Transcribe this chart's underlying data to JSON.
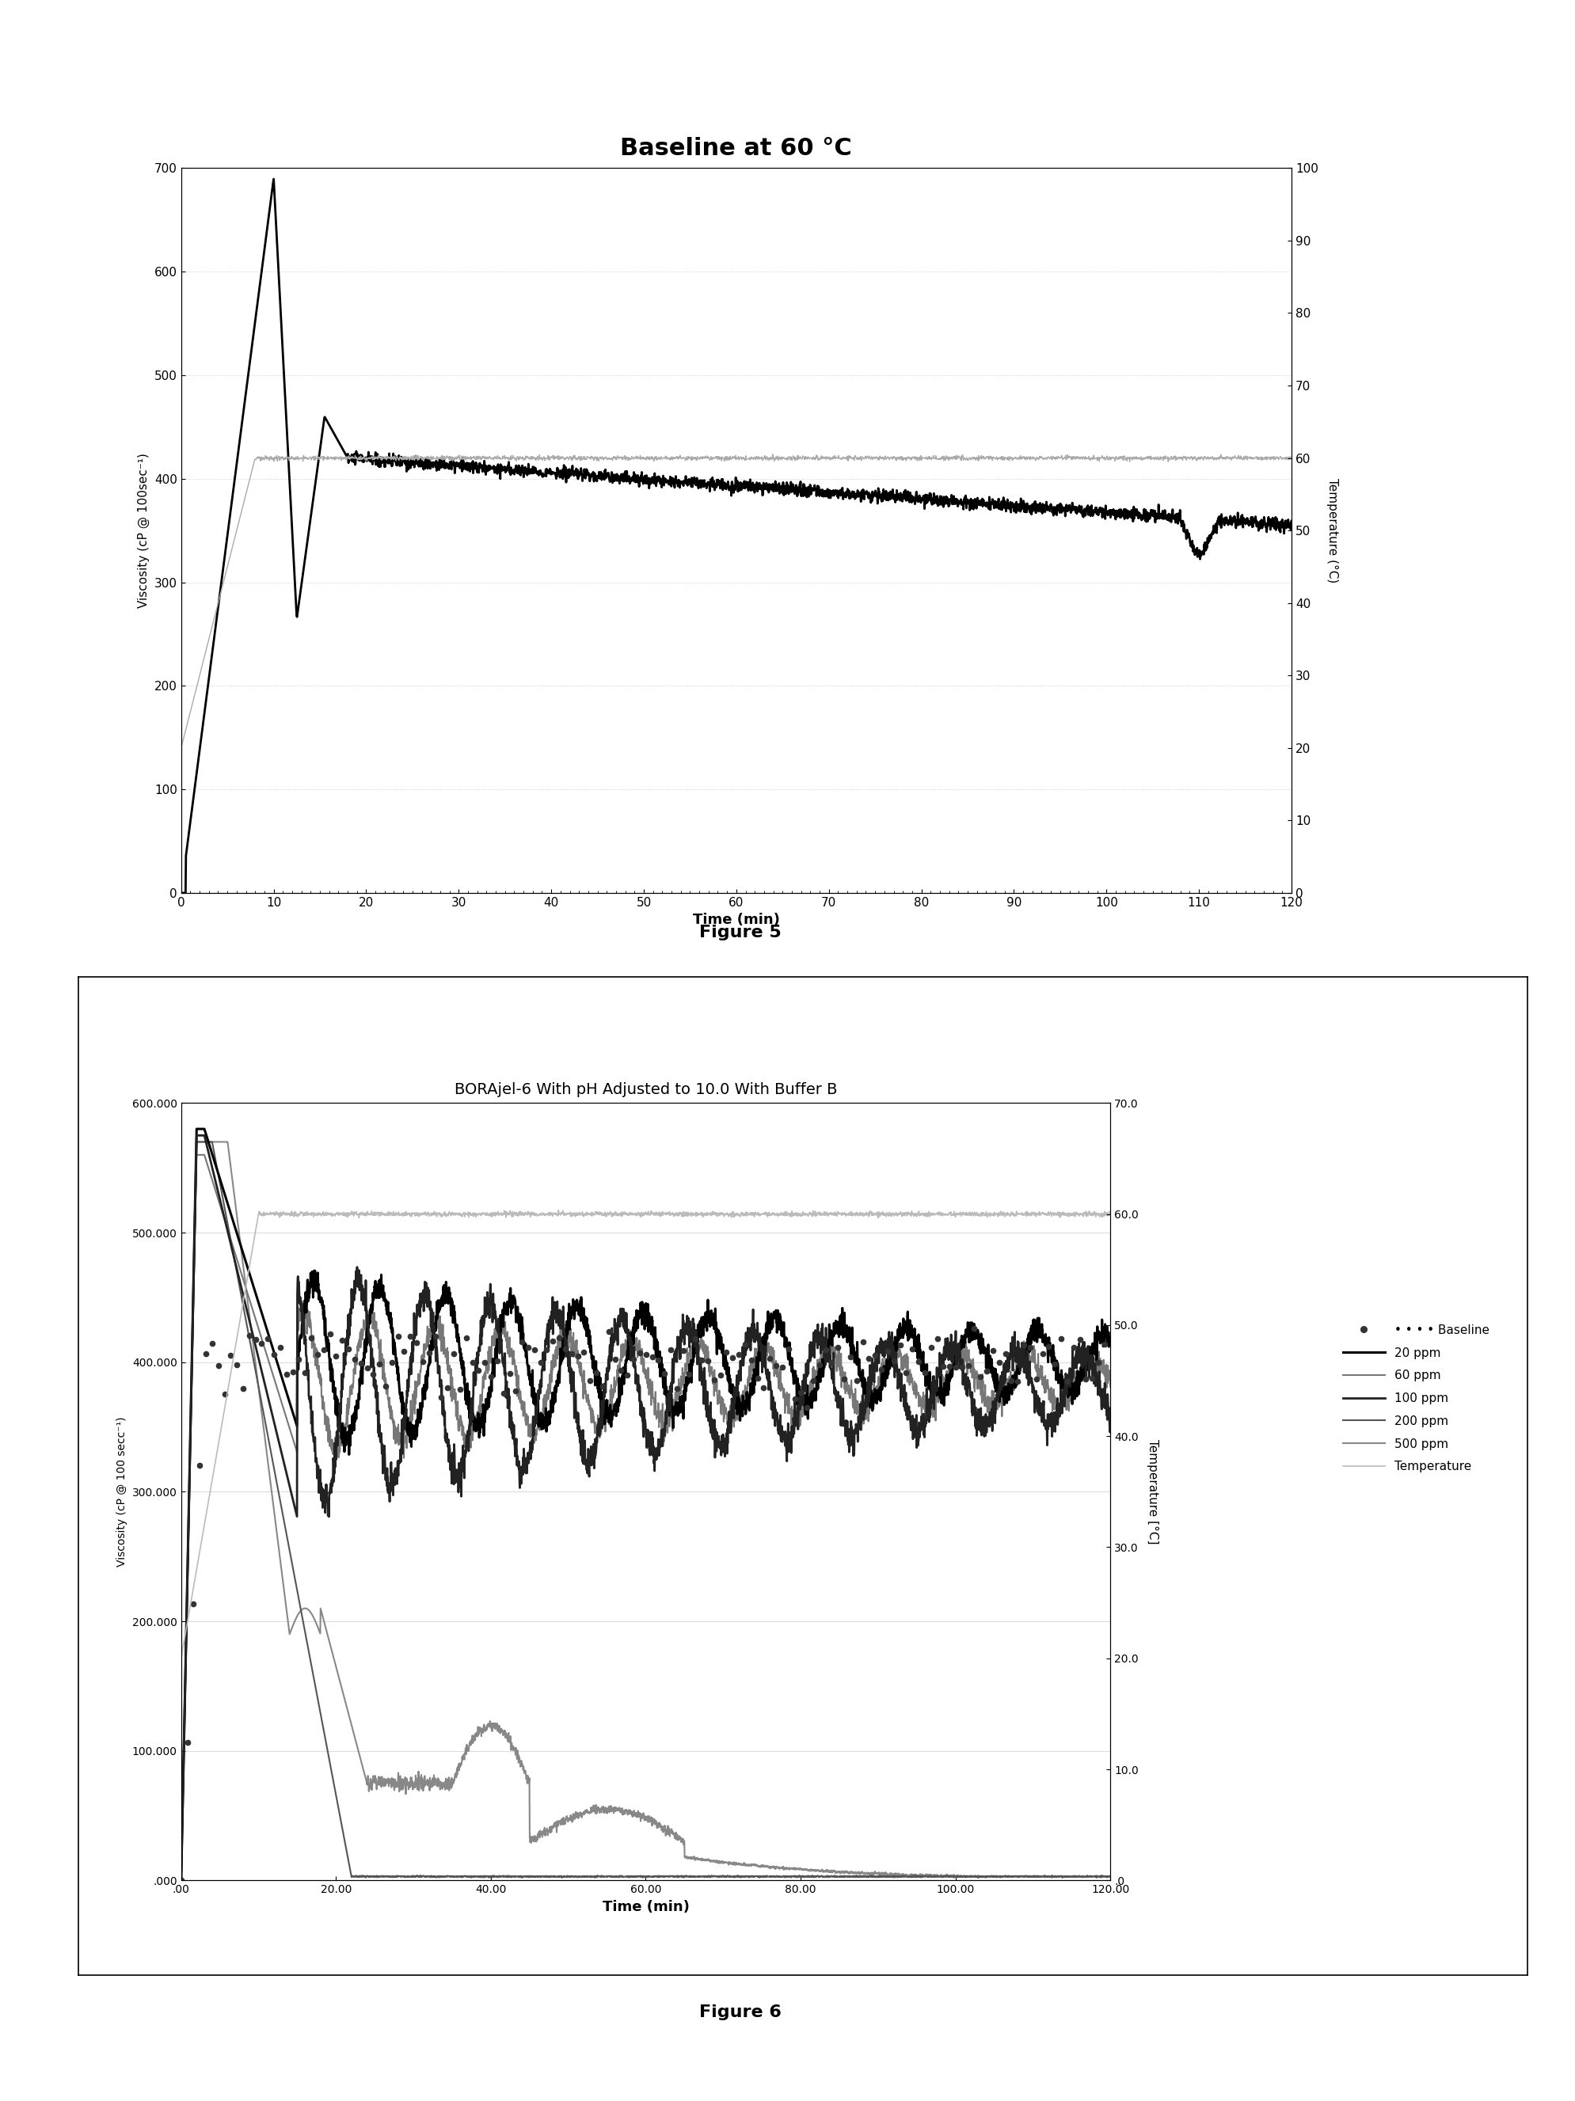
{
  "fig1_title": "Baseline at 60 °C",
  "fig1_xlabel": "Time (min)",
  "fig1_ylabel": "Viscosity (cP @ 100sec⁻¹)",
  "fig1_ylabel2": "Temperature (°C)",
  "fig1_xlim": [
    0,
    120
  ],
  "fig1_ylim": [
    0,
    700
  ],
  "fig1_ylim2": [
    0,
    100
  ],
  "fig1_xticks": [
    0,
    10,
    20,
    30,
    40,
    50,
    60,
    70,
    80,
    90,
    100,
    110,
    120
  ],
  "fig1_yticks": [
    0,
    100,
    200,
    300,
    400,
    500,
    600,
    700
  ],
  "fig1_yticks2": [
    0,
    10,
    20,
    30,
    40,
    50,
    60,
    70,
    80,
    90,
    100
  ],
  "fig2_title": "BORAjel-6 With pH Adjusted to 10.0 With Buffer B",
  "fig2_xlabel": "Time (min)",
  "fig2_ylabel": "Viscosity (cP @ 100 secc⁻¹)",
  "fig2_ylabel2": "Temperature [°C]",
  "fig2_xlim": [
    0,
    120
  ],
  "fig2_ylim": [
    0,
    600000
  ],
  "fig2_ylim2": [
    0,
    70
  ],
  "fig2_yticks": [
    0,
    100000,
    200000,
    300000,
    400000,
    500000,
    600000
  ],
  "fig2_ytick_labels": [
    ".000",
    "100.000",
    "200.000",
    "300.000",
    "400.000",
    "500.000",
    "600.000"
  ],
  "fig2_yticks2": [
    0.0,
    10.0,
    20.0,
    30.0,
    40.0,
    50.0,
    60.0,
    70.0
  ],
  "fig2_ytick_labels2": [
    ".0",
    "10.0",
    "20.0",
    "30.0",
    "40.0",
    "50.0",
    "60.0",
    "70.0"
  ],
  "fig2_xticks": [
    0,
    20,
    40,
    60,
    80,
    100,
    120
  ],
  "fig2_xtick_labels": [
    ".00",
    "20.00",
    "40.00",
    "60.00",
    "80.00",
    "100.00",
    "120.00"
  ],
  "caption1": "Figure 5",
  "caption2": "Figure 6"
}
